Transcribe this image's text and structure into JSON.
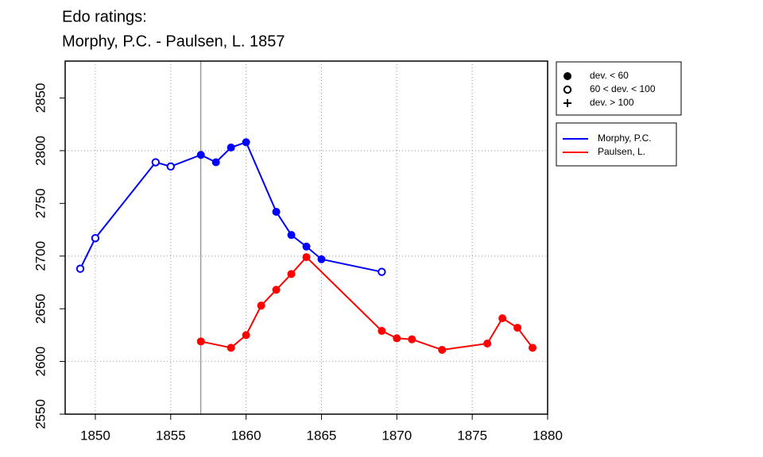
{
  "chart_data": {
    "type": "line",
    "title": "Edo ratings:",
    "subtitle": "Morphy, P.C. - Paulsen, L. 1857",
    "xlim": [
      1848,
      1880
    ],
    "ylim": [
      2550,
      2885
    ],
    "xticks": [
      1850,
      1855,
      1860,
      1865,
      1870,
      1875,
      1880
    ],
    "yticks": [
      2550,
      2600,
      2650,
      2700,
      2750,
      2800,
      2850
    ],
    "grid_x": [
      1850,
      1855,
      1860,
      1865,
      1870,
      1875
    ],
    "grid_y": [
      2600,
      2700,
      2800
    ],
    "vline": 1857,
    "marker_legend": [
      {
        "label": "dev. < 60",
        "marker": "filled"
      },
      {
        "label": "60 < dev. < 100",
        "marker": "open"
      },
      {
        "label": "dev. > 100",
        "marker": "plus"
      }
    ],
    "series": [
      {
        "name": "Morphy, P.C.",
        "color": "#0000ff",
        "x": [
          1849,
          1850,
          1854,
          1855,
          1857,
          1858,
          1859,
          1860,
          1862,
          1863,
          1864,
          1865,
          1869
        ],
        "values": [
          2688,
          2717,
          2789,
          2785,
          2796,
          2789,
          2803,
          2808,
          2742,
          2720,
          2709,
          2697,
          2685
        ],
        "markers": [
          "open",
          "open",
          "open",
          "open",
          "filled",
          "filled",
          "filled",
          "filled",
          "filled",
          "filled",
          "filled",
          "filled",
          "open"
        ]
      },
      {
        "name": "Paulsen, L.",
        "color": "#ff0000",
        "x": [
          1857,
          1859,
          1860,
          1861,
          1862,
          1863,
          1864,
          1869,
          1870,
          1871,
          1873,
          1876,
          1877,
          1878,
          1879
        ],
        "values": [
          2619,
          2613,
          2625,
          2653,
          2668,
          2683,
          2699,
          2629,
          2622,
          2621,
          2611,
          2617,
          2641,
          2632,
          2613
        ],
        "markers": [
          "filled",
          "filled",
          "filled",
          "filled",
          "filled",
          "filled",
          "filled",
          "filled",
          "filled",
          "filled",
          "filled",
          "filled",
          "filled",
          "filled",
          "filled"
        ]
      }
    ]
  }
}
